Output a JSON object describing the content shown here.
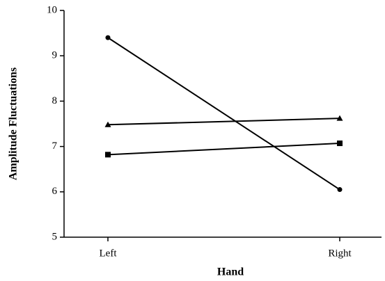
{
  "chart_data": {
    "type": "line",
    "x_label": "Hand",
    "y_label": "Amplitude Fluctuations",
    "categories": [
      "Left",
      "Right"
    ],
    "series": [
      {
        "marker": "circle",
        "color": "#000000",
        "values": [
          9.4,
          6.05
        ]
      },
      {
        "marker": "triangle",
        "color": "#000000",
        "values": [
          7.48,
          7.62
        ]
      },
      {
        "marker": "square",
        "color": "#000000",
        "values": [
          6.82,
          7.07
        ]
      }
    ],
    "ylim": [
      5,
      10
    ],
    "yticks": [
      5,
      6,
      7,
      8,
      9,
      10
    ],
    "grid": false
  }
}
